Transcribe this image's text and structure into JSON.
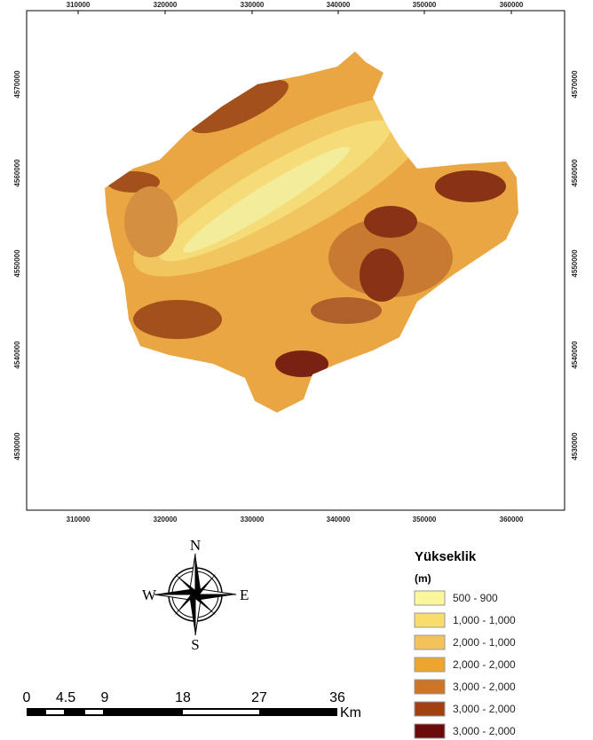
{
  "map": {
    "x_labels": [
      "310000",
      "320000",
      "330000",
      "340000",
      "350000",
      "360000"
    ],
    "y_labels": [
      "4570000",
      "4560000",
      "4550000",
      "4540000",
      "4530000"
    ]
  },
  "compass": {
    "north": "N",
    "east": "E",
    "south": "S",
    "west": "W"
  },
  "scale_bar": {
    "labels": [
      "0",
      "4.5",
      "9",
      "18",
      "27",
      "36"
    ],
    "unit": "Km"
  },
  "legend": {
    "title": "Yükseklik",
    "unit": "(m)",
    "items": [
      {
        "label": "500 - 900",
        "color": "#fbf59b"
      },
      {
        "label": "1,000 - 1,000",
        "color": "#f8dc6c"
      },
      {
        "label": "2,000 - 1,000",
        "color": "#f4c25a"
      },
      {
        "label": "2,000 - 2,000",
        "color": "#eea52f"
      },
      {
        "label": "3,000 - 2,000",
        "color": "#cd7426"
      },
      {
        "label": "3,000 - 2,000",
        "color": "#a3400f"
      },
      {
        "label": "3,000 - 2,000",
        "color": "#6b0a0a"
      }
    ]
  }
}
